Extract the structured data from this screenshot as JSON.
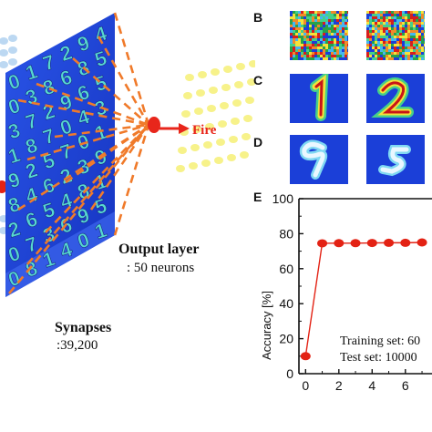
{
  "panel_letters": {
    "b": "B",
    "c": "C",
    "d": "D",
    "e": "E"
  },
  "labels": {
    "fire": "Fire",
    "output_title": "Output layer",
    "output_sub": ": 50 neurons",
    "synapses_title": "Synapses",
    "synapses_sub": ":39,200"
  },
  "colors": {
    "weight_blue": "#1f43d6",
    "fire_red": "#e8261b",
    "neuron_yellow": "#f7f28a",
    "input_blue": "#bcd8f2",
    "marker_red": "#e32214"
  },
  "chart_data": {
    "type": "line",
    "title": "",
    "xlabel": "",
    "ylabel": "Accuracy [%]",
    "x": [
      0,
      1,
      2,
      3,
      4,
      5,
      6,
      7
    ],
    "series": [
      {
        "values": [
          10,
          74.5,
          74.6,
          74.6,
          74.7,
          74.8,
          74.8,
          75.0
        ]
      }
    ],
    "xlim": [
      -0.4,
      7.6
    ],
    "ylim": [
      0,
      100
    ],
    "xticks": [
      0,
      2,
      4,
      6
    ],
    "yticks": [
      0,
      20,
      40,
      60,
      80,
      100
    ],
    "legend": [
      "Training set: 60",
      "Test set: 10000"
    ],
    "grid": false
  }
}
